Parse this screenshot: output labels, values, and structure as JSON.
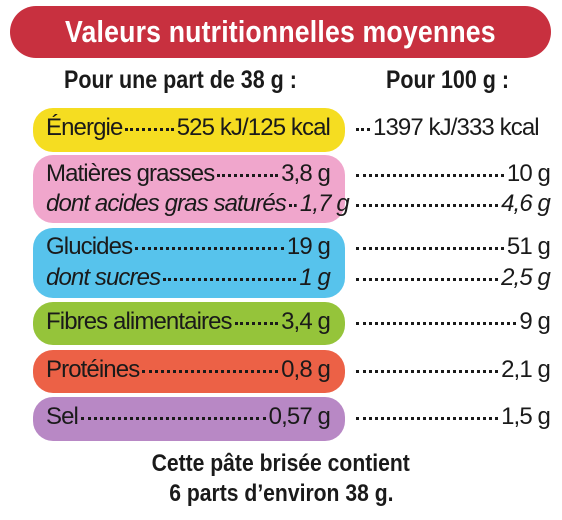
{
  "title": "Valeurs nutritionnelles moyennes",
  "headers": {
    "per_portion": "Pour une part de 38 g :",
    "per_100g": "Pour 100 g :"
  },
  "colors": {
    "title_bg": "#c8303f",
    "energie": "#f5dd21",
    "matieres_grasses": "#f0a6cc",
    "glucides": "#57c3ec",
    "fibres": "#95c43a",
    "proteines": "#ec6146",
    "sel": "#b888c5"
  },
  "rows": {
    "energie": {
      "label": "Énergie",
      "portion": "525 kJ/125 kcal",
      "per100": "1397 kJ/333 kcal"
    },
    "matieres_grasses": {
      "label": "Matières grasses",
      "portion": "3,8 g",
      "per100": "10 g"
    },
    "acides_gras_satures": {
      "label": "dont acides gras saturés",
      "portion": "1,7 g",
      "per100": "4,6 g"
    },
    "glucides": {
      "label": "Glucides",
      "portion": "19 g",
      "per100": "51 g"
    },
    "sucres": {
      "label": "dont sucres",
      "portion": "1 g",
      "per100": "2,5 g"
    },
    "fibres": {
      "label": "Fibres alimentaires",
      "portion": "3,4 g",
      "per100": "9 g"
    },
    "proteines": {
      "label": "Protéines",
      "portion": "0,8 g",
      "per100": "2,1 g"
    },
    "sel": {
      "label": "Sel",
      "portion": "0,57 g",
      "per100": "1,5 g"
    }
  },
  "footer": {
    "line1": "Cette pâte brisée contient",
    "line2": "6 parts d’environ 38 g."
  }
}
